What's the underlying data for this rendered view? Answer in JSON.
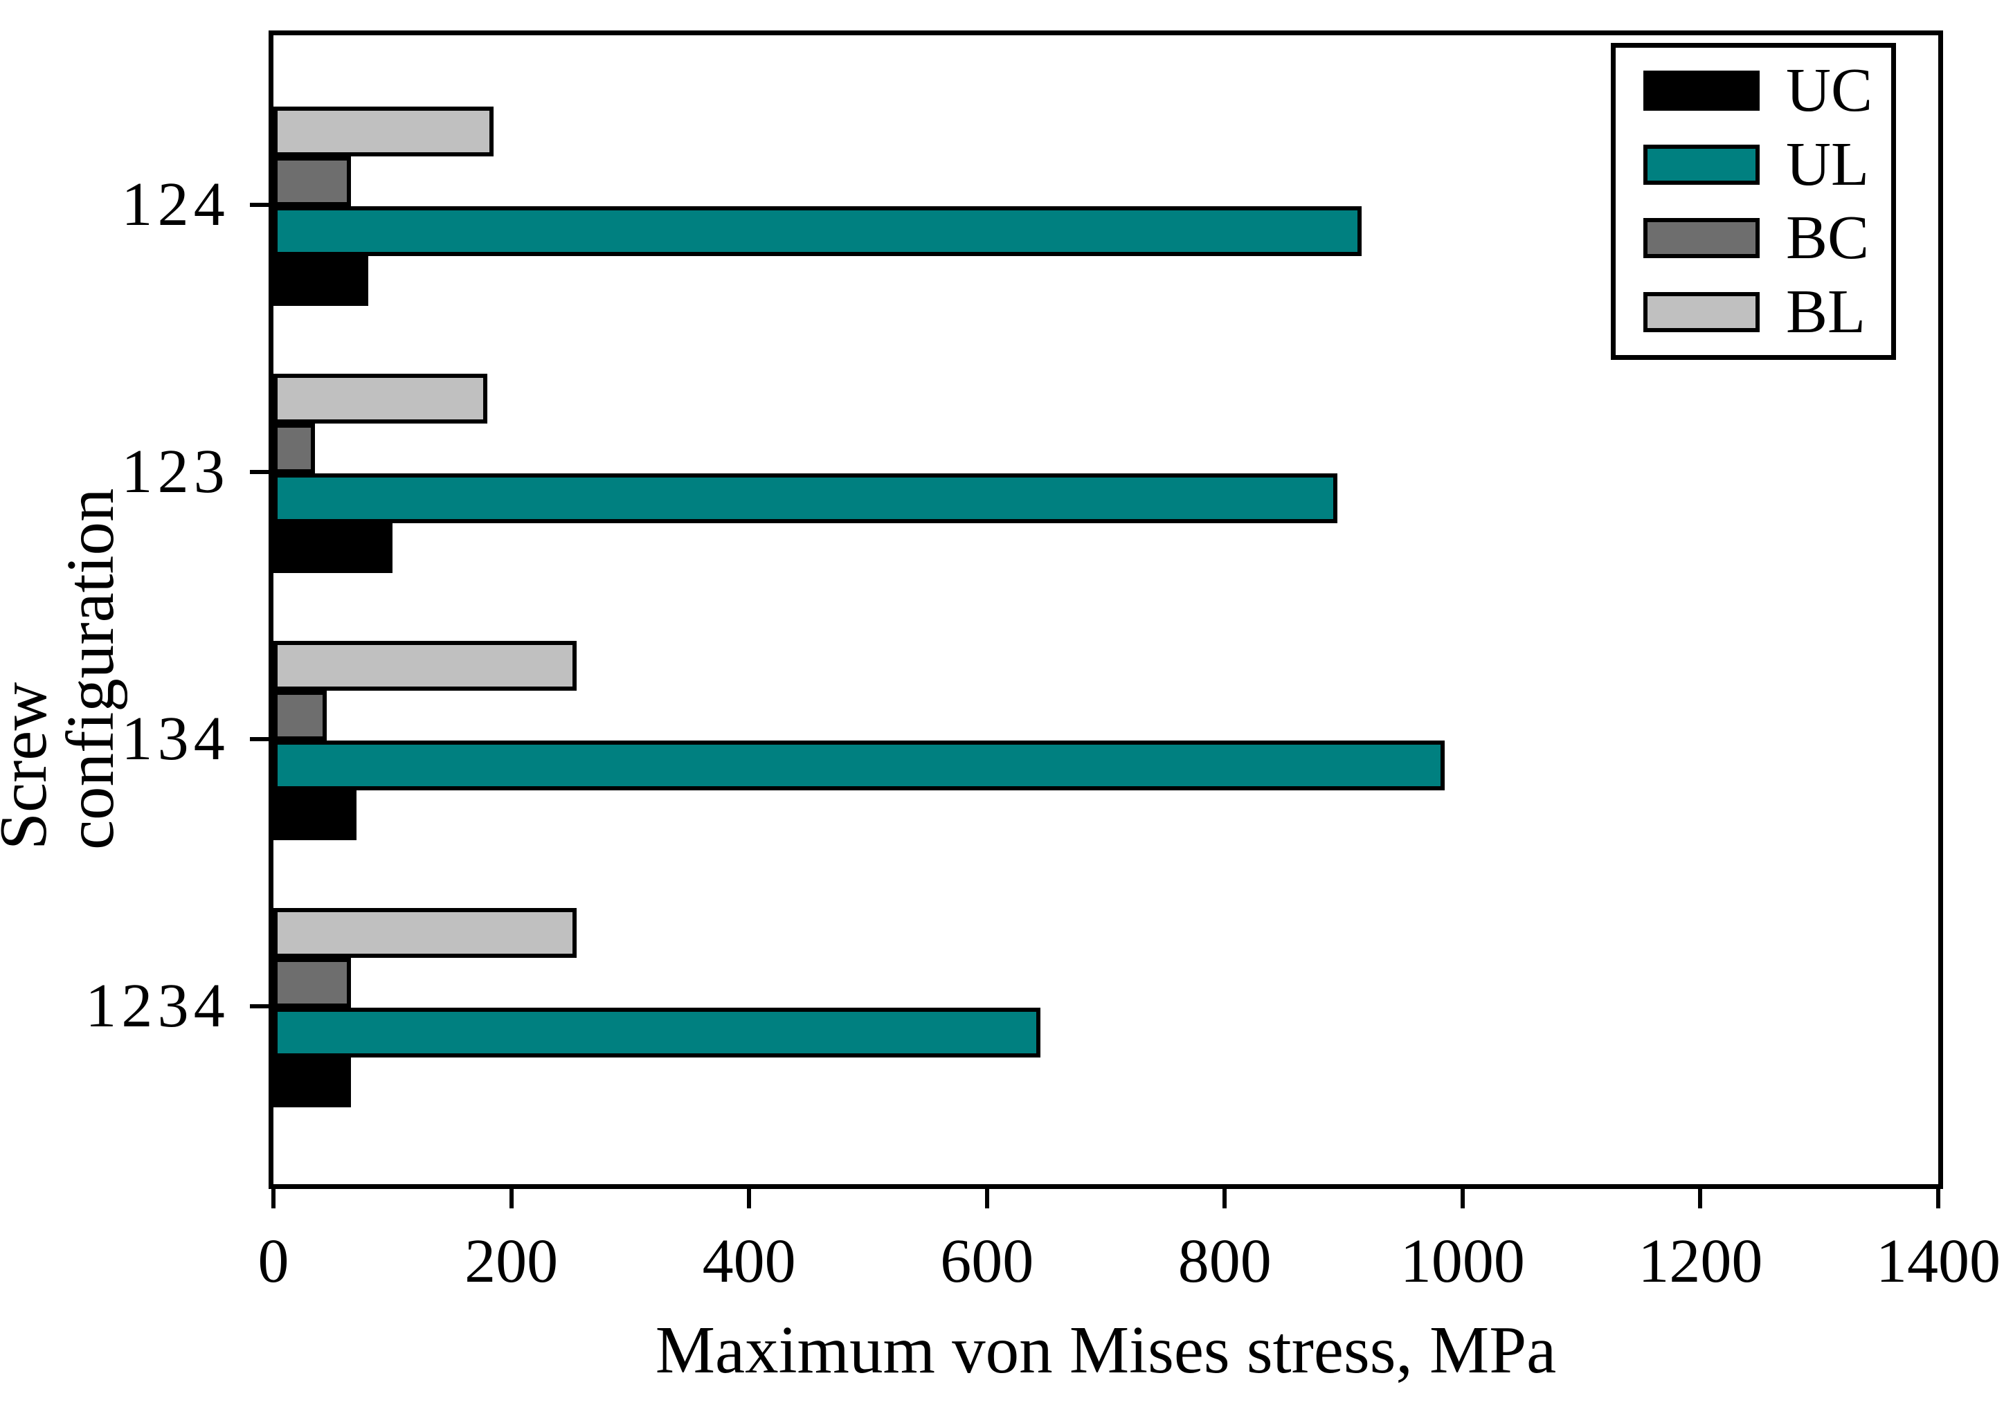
{
  "chart_data": {
    "type": "bar",
    "orientation": "horizontal",
    "title": "",
    "xlabel": "Maximum von Mises stress, MPa",
    "ylabel": "Screw configuration",
    "categories": [
      "124",
      "123",
      "134",
      "1234"
    ],
    "series": [
      {
        "name": "UC",
        "color": "#000000",
        "values": [
          80,
          100,
          70,
          65
        ]
      },
      {
        "name": "UL",
        "color": "#008080",
        "values": [
          915,
          895,
          985,
          645
        ]
      },
      {
        "name": "BC",
        "color": "#6e6e6e",
        "values": [
          65,
          35,
          45,
          65
        ]
      },
      {
        "name": "BL",
        "color": "#c0c0c0",
        "values": [
          185,
          180,
          255,
          255
        ]
      }
    ],
    "bar_stack_order_top_to_bottom": [
      "BL",
      "BC",
      "UL",
      "UC"
    ],
    "xlim": [
      0,
      1400
    ],
    "xticks": [
      0,
      200,
      400,
      600,
      800,
      1000,
      1200,
      1400
    ],
    "grid": false,
    "legend": {
      "position": "top-right",
      "entries": [
        "UC",
        "UL",
        "BC",
        "BL"
      ]
    },
    "colors": {
      "frame": "#000000",
      "bar_border": "#000000",
      "background": "#ffffff",
      "accent_teal": "#008080",
      "dark_gray": "#6e6e6e",
      "light_gray": "#c0c0c0"
    }
  }
}
